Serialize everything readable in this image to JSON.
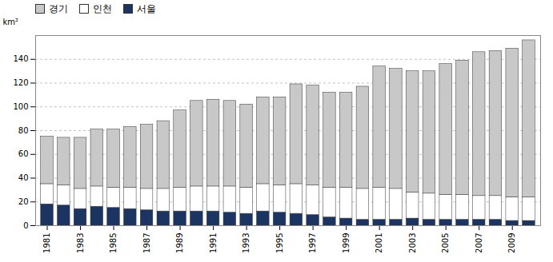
{
  "chart_data": {
    "type": "bar",
    "stacked": true,
    "x": [
      1981,
      1982,
      1983,
      1984,
      1985,
      1986,
      1987,
      1988,
      1989,
      1990,
      1991,
      1992,
      1993,
      1994,
      1995,
      1996,
      1997,
      1998,
      1999,
      2000,
      2001,
      2002,
      2003,
      2004,
      2005,
      2006,
      2007,
      2008,
      2009,
      2010
    ],
    "series": [
      {
        "name": "서울",
        "color": "#1c3461",
        "values": [
          18,
          17,
          14,
          16,
          15,
          14,
          13,
          12,
          12,
          12,
          12,
          11,
          10,
          12,
          11,
          10,
          9,
          7,
          6,
          5,
          5,
          5,
          6,
          5,
          5,
          5,
          5,
          5,
          4,
          4
        ]
      },
      {
        "name": "인천",
        "color": "#ffffff",
        "values": [
          17,
          17,
          17,
          17,
          17,
          18,
          18,
          19,
          20,
          21,
          21,
          22,
          22,
          23,
          23,
          25,
          25,
          25,
          26,
          26,
          27,
          26,
          22,
          22,
          21,
          21,
          20,
          20,
          20,
          20
        ]
      },
      {
        "name": "경기",
        "color": "#c8c8c8",
        "values": [
          40,
          40,
          43,
          48,
          49,
          51,
          54,
          57,
          65,
          72,
          73,
          72,
          70,
          73,
          74,
          84,
          84,
          80,
          80,
          86,
          102,
          101,
          102,
          103,
          110,
          113,
          121,
          122,
          125,
          132
        ]
      }
    ],
    "xlim": [
      1980.3,
      2010.7
    ],
    "xticks": [
      1981,
      1983,
      1985,
      1987,
      1989,
      1991,
      1993,
      1995,
      1997,
      1999,
      2001,
      2003,
      2005,
      2007,
      2009
    ],
    "ylim": [
      0,
      160
    ],
    "yticks": [
      0,
      20,
      40,
      60,
      80,
      100,
      120,
      140
    ],
    "ylabel": "km²",
    "grid": true,
    "legend": "upper left"
  }
}
